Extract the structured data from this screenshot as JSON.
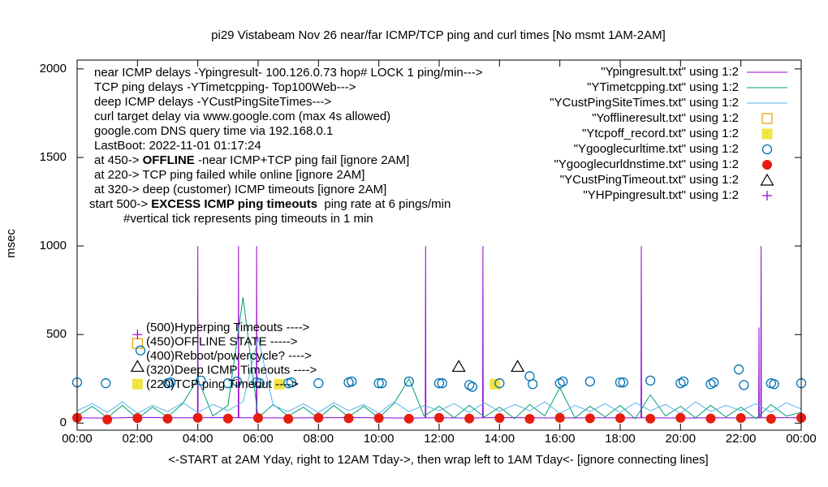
{
  "chart_data": {
    "type": "line",
    "title": "pi29 Vistabeam Nov 26  near/far ICMP/TCP ping and curl times [No msmt 1AM-2AM]",
    "xlabel": "<-START at 2AM Yday, right to 12AM Tday->, then wrap left to 1AM Tday<- [ignore connecting lines]",
    "ylabel": "msec",
    "xlim": [
      0,
      24
    ],
    "ylim": [
      -40,
      2050
    ],
    "xticks": [
      {
        "value": 0,
        "label": "00:00"
      },
      {
        "value": 2,
        "label": "02:00"
      },
      {
        "value": 4,
        "label": "04:00"
      },
      {
        "value": 6,
        "label": "06:00"
      },
      {
        "value": 8,
        "label": "08:00"
      },
      {
        "value": 10,
        "label": "10:00"
      },
      {
        "value": 12,
        "label": "12:00"
      },
      {
        "value": 14,
        "label": "14:00"
      },
      {
        "value": 16,
        "label": "16:00"
      },
      {
        "value": 18,
        "label": "18:00"
      },
      {
        "value": 20,
        "label": "20:00"
      },
      {
        "value": 22,
        "label": "22:00"
      },
      {
        "value": 24,
        "label": "00:00"
      }
    ],
    "yticks": [
      0,
      500,
      1000,
      1500,
      2000
    ],
    "legend": "top-right",
    "notes": [
      [
        "near ICMP delays -Ypingresult- 100.126.0.73 hop# LOCK 1 ping/min--->"
      ],
      [
        "TCP ping delays -YTimetcpping- Top100Web--->"
      ],
      [
        "deep ICMP delays -YCustPingSiteTimes--->"
      ],
      [
        "curl target delay via www.google.com (max 4s allowed)"
      ],
      [
        "google.com DNS query time via 192.168.0.1"
      ],
      [
        "LastBoot: 2022-11-01 01:17:24"
      ],
      [
        "at 450-> ",
        {
          "text": "OFFLINE",
          "bold": true
        },
        " -near ICMP+TCP ping fail [ignore 2AM]"
      ],
      [
        "at 220-> TCP ping failed while online [ignore 2AM]"
      ],
      [
        "at 320-> deep (customer) ICMP timeouts [ignore 2AM]"
      ],
      [
        "start 500-> ",
        {
          "text": "EXCESS ICMP ping timeouts",
          "bold": true
        },
        "  ping rate at 6 pings/min"
      ],
      [
        "#vertical tick represents ping timeouts in 1 min"
      ]
    ],
    "point_labels": [
      "(500)Hyperping Timeouts ---->",
      "(450)OFFLINE STATE ----->",
      "(400)Reboot/powercycle? ---->",
      "(320)Deep ICMP Timeouts ---->",
      "(220)TCP ping Timeout ---->"
    ],
    "series": [
      {
        "name": "\"Ypingresult.txt\" using 1:2",
        "color": "#9400d3",
        "style": "lines",
        "x": [
          0,
          1,
          2,
          3,
          3.99,
          4.0,
          4.01,
          5,
          5.34,
          5.35,
          5.36,
          5.94,
          5.95,
          5.96,
          7,
          8,
          9,
          10,
          11,
          11.54,
          11.55,
          11.56,
          12,
          13,
          13.44,
          13.45,
          13.46,
          14,
          15,
          16,
          17,
          18,
          18.69,
          18.7,
          18.71,
          19,
          20,
          21,
          22,
          22.59,
          22.6,
          22.61,
          22.66,
          22.67,
          22.68,
          23,
          24
        ],
        "values": [
          30,
          28,
          32,
          30,
          30,
          1000,
          30,
          31,
          30,
          1000,
          30,
          30,
          1000,
          30,
          29,
          30,
          31,
          30,
          28,
          30,
          1000,
          30,
          30,
          29,
          30,
          1000,
          30,
          31,
          30,
          29,
          30,
          30,
          30,
          1000,
          30,
          30,
          28,
          30,
          29,
          30,
          540,
          30,
          30,
          1000,
          30,
          31,
          30
        ]
      },
      {
        "name": "\"YTimetcpping.txt\" using 1:2",
        "color": "#009e73",
        "style": "lines",
        "x": [
          0,
          0.5,
          1,
          1.5,
          2,
          2.5,
          3,
          3.5,
          4,
          4.5,
          5,
          5.5,
          6,
          6.5,
          7,
          7.5,
          8,
          8.5,
          9,
          9.5,
          10,
          10.5,
          11,
          11.5,
          12,
          12.5,
          13,
          13.5,
          14,
          14.5,
          15,
          15.5,
          16,
          16.5,
          17,
          17.5,
          18,
          18.5,
          19,
          19.5,
          20,
          20.5,
          21,
          21.5,
          22,
          22.5,
          23,
          23.5,
          24
        ],
        "values": [
          40,
          95,
          30,
          100,
          25,
          90,
          35,
          110,
          250,
          40,
          100,
          711,
          30,
          105,
          40,
          90,
          25,
          100,
          35,
          95,
          30,
          110,
          250,
          40,
          95,
          30,
          100,
          35,
          90,
          25,
          105,
          40,
          200,
          30,
          95,
          35,
          100,
          25,
          160,
          40,
          95,
          30,
          100,
          35,
          90,
          25,
          105,
          40,
          60
        ]
      },
      {
        "name": "\"YCustPingSiteTimes.txt\" using 1:2",
        "color": "#56b4e9",
        "style": "lines",
        "x": [
          0,
          0.5,
          1,
          1.5,
          2,
          2.5,
          3,
          3.5,
          4,
          4.5,
          5,
          5.5,
          6,
          6.5,
          7,
          7.5,
          8,
          8.5,
          9,
          9.5,
          10,
          10.5,
          11,
          11.5,
          12,
          12.5,
          13,
          13.5,
          14,
          14.5,
          15,
          15.5,
          16,
          16.5,
          17,
          17.5,
          18,
          18.5,
          19,
          19.5,
          20,
          20.5,
          21,
          21.5,
          22,
          22.5,
          23,
          23.5,
          24
        ],
        "values": [
          70,
          110,
          60,
          120,
          55,
          100,
          65,
          115,
          60,
          105,
          70,
          120,
          480,
          100,
          65,
          110,
          60,
          115,
          70,
          105,
          55,
          120,
          65,
          100,
          70,
          110,
          60,
          115,
          65,
          105,
          70,
          120,
          55,
          100,
          65,
          110,
          60,
          115,
          70,
          105,
          55,
          120,
          65,
          100,
          70,
          110,
          60,
          115,
          80
        ]
      },
      {
        "name": "\"Yofflineresult.txt\" using 1:2",
        "color": "#e69f00",
        "style": "open-square",
        "x": [
          2.0
        ],
        "values": [
          450
        ]
      },
      {
        "name": "\"Ytcpoff_record.txt\" using 1:2",
        "color": "#f0e442",
        "style": "filled-square",
        "x": [
          2.0,
          6.7,
          13.85
        ],
        "values": [
          220,
          220,
          220
        ]
      },
      {
        "name": "\"Ygooglecurltime.txt\" using 1:2",
        "color": "#0072b2",
        "style": "open-circle",
        "x": [
          0,
          0.95,
          2.1,
          3.0,
          3.1,
          4.1,
          5.0,
          5.3,
          5.95,
          6.05,
          7.0,
          7.1,
          8.0,
          9.0,
          9.1,
          10.0,
          10.1,
          11.0,
          12.0,
          12.1,
          13.0,
          13.1,
          14.0,
          15.0,
          15.1,
          16.0,
          16.1,
          17.0,
          18.0,
          18.1,
          19.0,
          20.0,
          20.1,
          21.0,
          21.1,
          21.93,
          22.1,
          23.0,
          23.1,
          24.0
        ],
        "values": [
          230,
          225,
          410,
          225,
          230,
          240,
          225,
          235,
          230,
          225,
          225,
          230,
          225,
          230,
          235,
          225,
          225,
          235,
          225,
          225,
          215,
          205,
          225,
          265,
          220,
          225,
          235,
          235,
          230,
          230,
          240,
          225,
          235,
          220,
          230,
          303,
          215,
          225,
          220,
          225
        ]
      },
      {
        "name": "\"Ygooglecurldnstime.txt\" using 1:2",
        "color": "#e51e10",
        "style": "filled-circle",
        "x": [
          0,
          1,
          2,
          3,
          4,
          5,
          6,
          7,
          8,
          9,
          10,
          11,
          12,
          13,
          14,
          15,
          16,
          17,
          18,
          19,
          20,
          21,
          22,
          23,
          24
        ],
        "values": [
          30,
          20,
          28,
          25,
          30,
          26,
          29,
          24,
          30,
          27,
          28,
          25,
          30,
          26,
          29,
          24,
          30,
          27,
          28,
          25,
          30,
          26,
          29,
          24,
          30
        ]
      },
      {
        "name": "\"YCustPingTimeout.txt\" using 1:2",
        "color": "#000000",
        "style": "open-triangle",
        "x": [
          2.0,
          12.65,
          14.6
        ],
        "values": [
          320,
          320,
          320
        ]
      },
      {
        "name": "\"YHPpingresult.txt\" using 1:2",
        "color": "#9400d3",
        "style": "plus",
        "x": [
          2.0
        ],
        "values": [
          500
        ]
      }
    ]
  }
}
